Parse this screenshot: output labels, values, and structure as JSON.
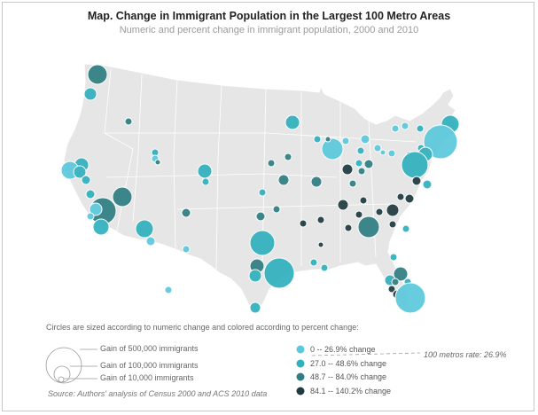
{
  "title": "Map. Change in Immigrant Population in the Largest 100 Metro Areas",
  "subtitle": "Numeric and percent change in immigrant population, 2000 and 2010",
  "legend": {
    "caption": "Circles are sized according to numeric change and colored according to percent change:",
    "sizes": [
      {
        "label": "Gain of 500,000 immigrants",
        "value": 500000
      },
      {
        "label": "Gain of 100,000 immigrants",
        "value": 100000
      },
      {
        "label": "Gain of 10,000 immigrants",
        "value": 10000
      }
    ],
    "colors": [
      {
        "label": "0 -- 26.9% change",
        "color": "#5bc8dc"
      },
      {
        "label": "27.0 -- 48.6% change",
        "color": "#2fb0bd"
      },
      {
        "label": "48.7 -- 84.0% change",
        "color": "#2e7e83"
      },
      {
        "label": "84.1 -- 140.2% change",
        "color": "#1f3a40"
      }
    ],
    "average": "100 metros rate: 26.9%"
  },
  "source": "Source: Authors' analysis of Census 2000 and ACS 2010 data",
  "colors": {
    "land": "#e6e6e6",
    "border": "#ffffff"
  }
}
